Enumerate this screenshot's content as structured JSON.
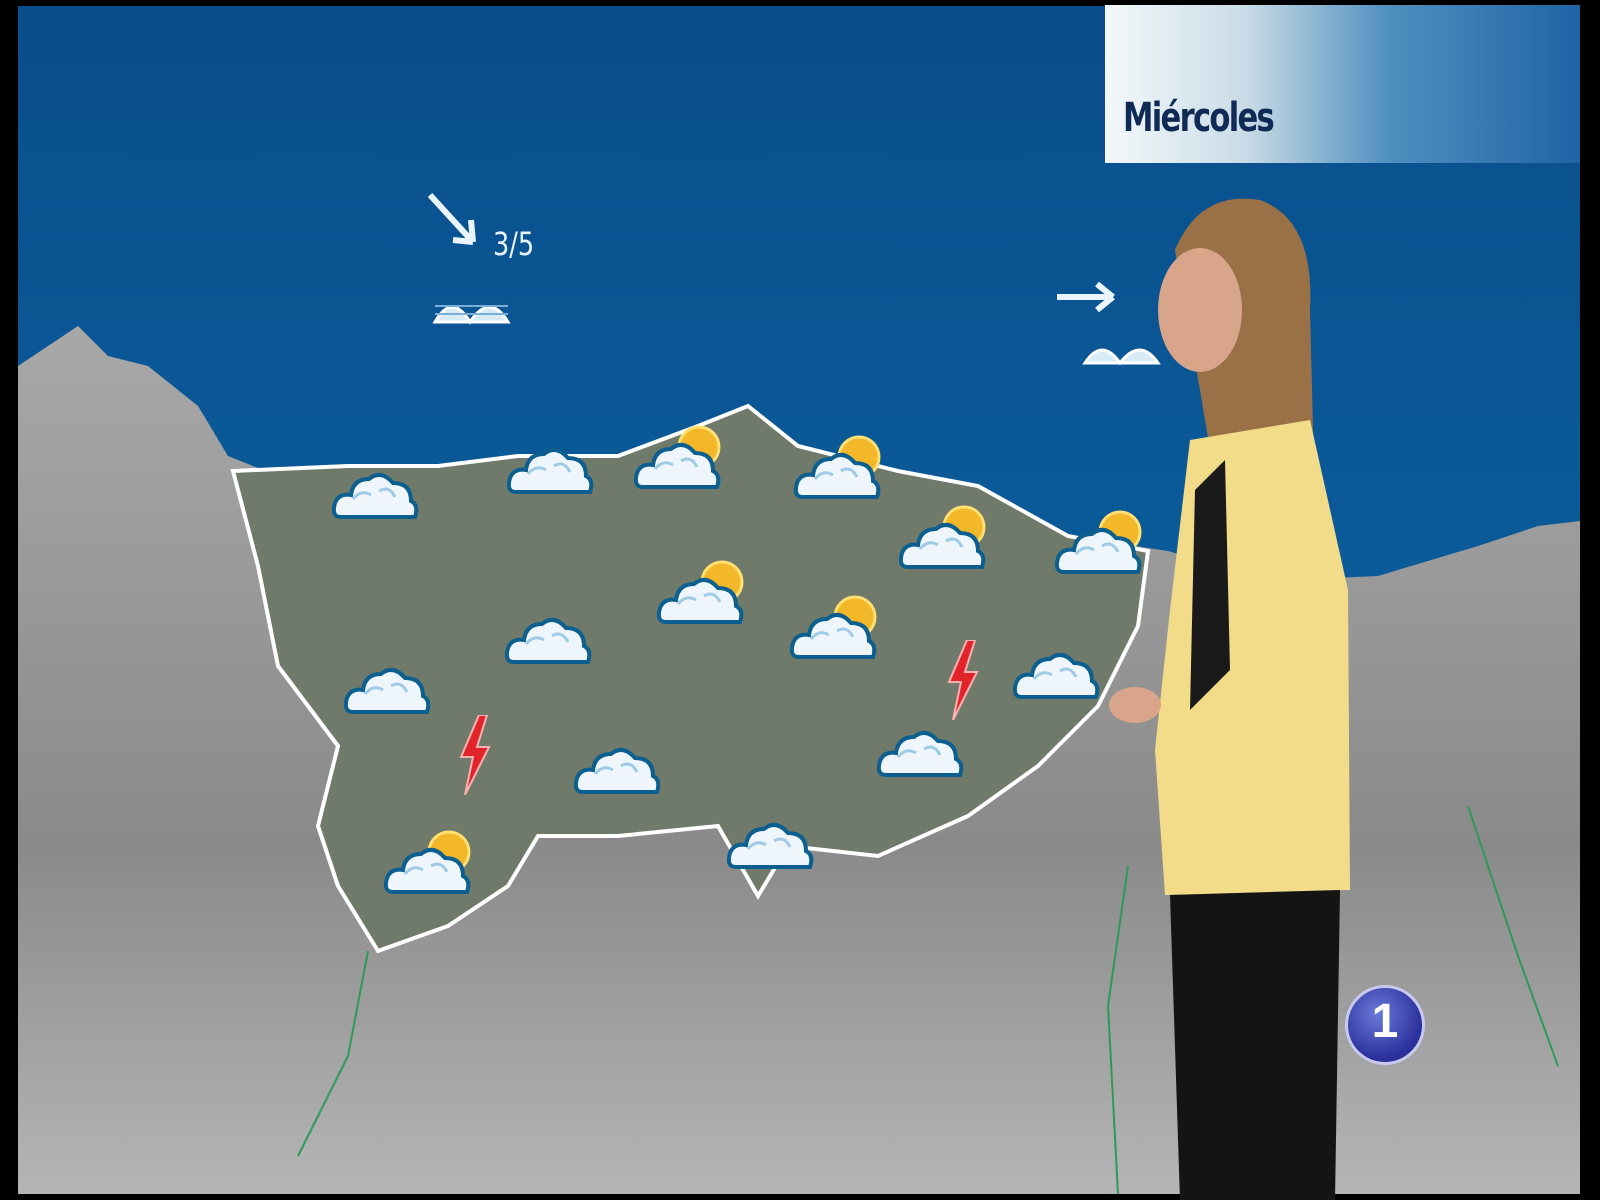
{
  "overlay": {
    "day_label": "Miércoles"
  },
  "wind": [
    {
      "direction": "southeast",
      "value": "3/5",
      "icon": "arrow-down-right-icon",
      "sea_icon": "waves-icon"
    },
    {
      "direction": "east",
      "icon": "arrow-right-icon",
      "sea_icon": "waves-icon"
    }
  ],
  "weather_icons": [
    "cloudy-icon",
    "cloudy-icon",
    "partly-sunny-icon",
    "partly-sunny-icon",
    "partly-sunny-icon",
    "partly-sunny-icon",
    "partly-sunny-icon",
    "cloudy-icon",
    "partly-sunny-icon",
    "cloudy-icon",
    "cloudy-icon",
    "cloudy-icon",
    "cloudy-icon",
    "partly-sunny-icon",
    "cloudy-icon",
    "lightning-icon",
    "lightning-icon"
  ],
  "logo": {
    "text": "1"
  },
  "colors": {
    "sea": "#0b5a99",
    "land": "#9a9a9a",
    "region": "#6f7a6a",
    "border": "#ffffff",
    "jacket": "#f2dc8a",
    "bolt": "#e0242a",
    "sun": "#f3b72a"
  }
}
